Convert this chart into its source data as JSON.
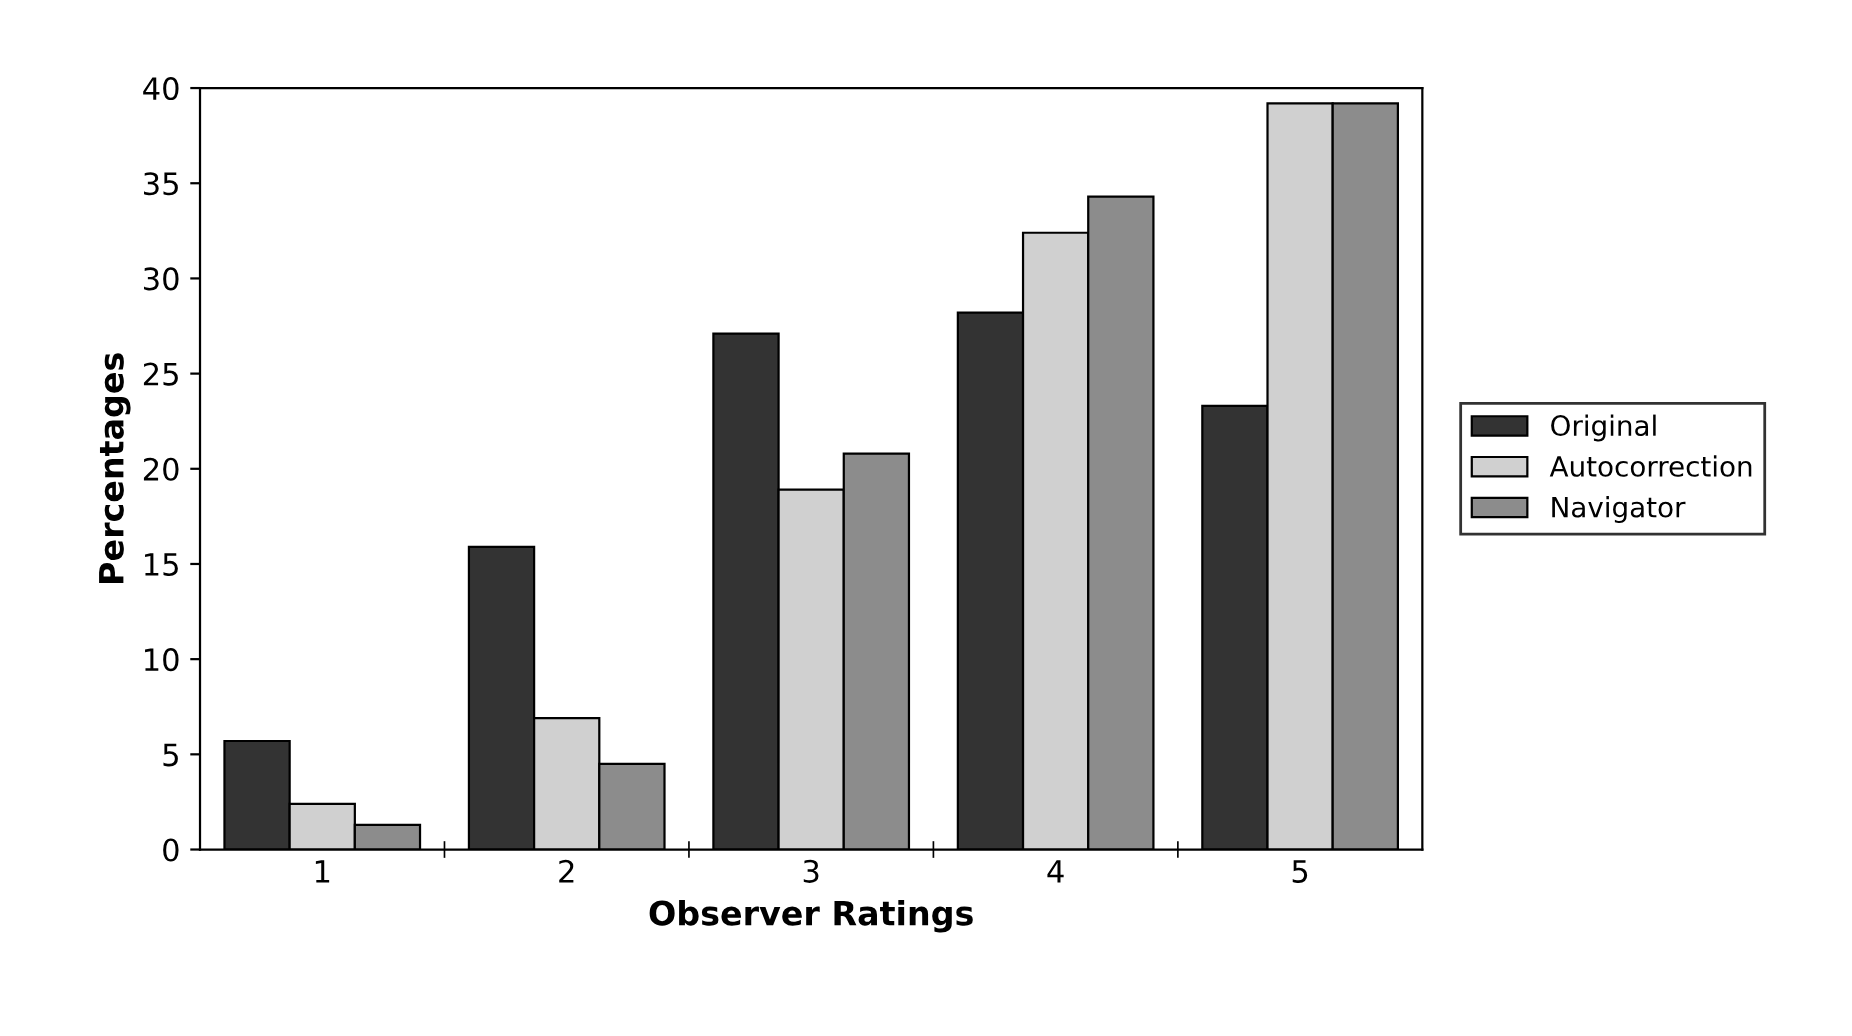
{
  "chart_data": {
    "type": "bar",
    "xlabel": "Observer Ratings",
    "ylabel": "Percentages",
    "categories": [
      "1",
      "2",
      "3",
      "4",
      "5"
    ],
    "series": [
      {
        "name": "Original",
        "color": "#333333",
        "values": [
          5.7,
          15.9,
          27.1,
          28.2,
          23.3
        ]
      },
      {
        "name": "Autocorrection",
        "color": "#d0d0d0",
        "values": [
          2.4,
          6.9,
          18.9,
          32.4,
          39.2
        ]
      },
      {
        "name": "Navigator",
        "color": "#8c8c8c",
        "values": [
          1.3,
          4.5,
          20.8,
          34.3,
          39.2
        ]
      }
    ],
    "ylim": [
      0,
      40
    ],
    "yticks": [
      0,
      5,
      10,
      15,
      20,
      25,
      30,
      35,
      40
    ],
    "grid": false,
    "legend": "right"
  }
}
